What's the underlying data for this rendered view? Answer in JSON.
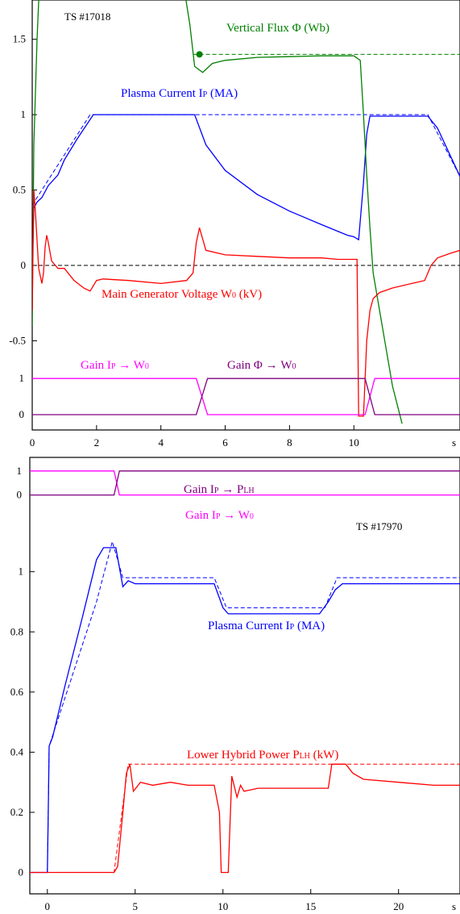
{
  "chart_data": [
    {
      "type": "line",
      "annotation": "TS #17018",
      "x_unit_label": "s",
      "xlim": [
        0,
        13.3
      ],
      "ylim": [
        -0.99,
        1.6
      ],
      "x_ticks": [
        0,
        2,
        4,
        6,
        8,
        10
      ],
      "x_tick_labels": [
        "0",
        "2",
        "4",
        "6",
        "8",
        "10"
      ],
      "y_ticks": [
        1.5,
        1,
        0.5,
        0,
        -0.5
      ],
      "y_tick_labels": [
        "1.5",
        "1",
        "0.5",
        "0",
        "-0.5"
      ],
      "gain_ticks": [
        {
          "label": "1",
          "value": -0.75
        },
        {
          "label": "0",
          "value": -0.99
        }
      ],
      "colors": {
        "ip": "#0000ff",
        "flux": "#008000",
        "w0": "#ff0000",
        "gain_ip": "#ff00ff",
        "gain_flux": "#800080",
        "reference": "#000000"
      },
      "labels": {
        "flux": {
          "main": "Vertical Flux Φ (Wb)"
        },
        "ip": {
          "main": "Plasma Current I",
          "sub": "P",
          "tail": " (MA)"
        },
        "w0": {
          "main": "Main Generator Voltage W",
          "sub": "0",
          "tail": " (kV)"
        },
        "gain_ip": {
          "main": "Gain I",
          "sub": "P",
          "arrow": " → W",
          "sub2": "0"
        },
        "gain_flux": {
          "main": "Gain Φ → W",
          "sub": "0"
        }
      },
      "series": [
        {
          "key": "ip_ref",
          "dashed": true,
          "color": "#0000ff",
          "x": [
            0,
            1.8,
            12.3,
            13.3
          ],
          "y": [
            0.4,
            1.0,
            1.0,
            0.59
          ]
        },
        {
          "key": "ip",
          "color": "#0000ff",
          "x": [
            0,
            0.05,
            0.15,
            0.3,
            0.5,
            0.8,
            1.0,
            1.4,
            1.9,
            2.0,
            3.0,
            4.0,
            5.0,
            5.05,
            5.4,
            6.0,
            7.0,
            8.0,
            9.0,
            9.8,
            10.0,
            10.15,
            10.3,
            10.4,
            10.5,
            12.3,
            12.6,
            13.3
          ],
          "y": [
            0.0,
            0.38,
            0.42,
            0.45,
            0.53,
            0.6,
            0.7,
            0.84,
            1.0,
            1.0,
            1.0,
            1.0,
            1.0,
            1.0,
            0.8,
            0.63,
            0.47,
            0.36,
            0.27,
            0.2,
            0.19,
            0.17,
            0.55,
            0.87,
            0.99,
            0.99,
            0.91,
            0.59
          ]
        },
        {
          "key": "flux_ref",
          "dashed": true,
          "color": "#008000",
          "x": [
            5.0,
            13.3
          ],
          "y": [
            1.4,
            1.4
          ]
        },
        {
          "key": "flux",
          "color": "#008000",
          "x": [
            0,
            0.05,
            0.15,
            0.25,
            4.6,
            4.9,
            5.05,
            5.3,
            5.6,
            6.0,
            7.0,
            8.0,
            9.0,
            10.0,
            10.2,
            10.3,
            10.4,
            10.5,
            10.6,
            10.8,
            11.0,
            11.2,
            11.5
          ],
          "y": [
            -0.4,
            0.8,
            1.5,
            2.0,
            2.0,
            1.6,
            1.32,
            1.28,
            1.34,
            1.36,
            1.38,
            1.385,
            1.39,
            1.39,
            1.36,
            1.0,
            0.6,
            0.25,
            -0.05,
            -0.3,
            -0.55,
            -0.8,
            -1.05
          ]
        },
        {
          "key": "w0_ref",
          "dashed": true,
          "color": "#000000",
          "x": [
            0,
            13.3
          ],
          "y": [
            0,
            0
          ]
        },
        {
          "key": "w0",
          "color": "#ff0000",
          "x": [
            0,
            0.05,
            0.1,
            0.2,
            0.3,
            0.35,
            0.4,
            0.45,
            0.5,
            0.6,
            0.8,
            1.0,
            1.3,
            1.6,
            1.8,
            2.0,
            2.2,
            3.0,
            4.0,
            4.8,
            5.0,
            5.1,
            5.2,
            5.4,
            6.0,
            7.0,
            8.0,
            9.0,
            9.5,
            9.9,
            10.0,
            10.1,
            10.15,
            10.3,
            10.4,
            10.5,
            10.6,
            10.8,
            11.2,
            11.8,
            12.2,
            12.4,
            12.6,
            13.0,
            13.3
          ],
          "y": [
            -0.3,
            0.5,
            0.35,
            -0.02,
            -0.12,
            -0.05,
            0.12,
            0.2,
            0.15,
            0.03,
            -0.02,
            -0.02,
            -0.1,
            -0.15,
            -0.17,
            -0.1,
            -0.09,
            -0.1,
            -0.12,
            -0.1,
            -0.05,
            0.15,
            0.25,
            0.1,
            0.07,
            0.06,
            0.05,
            0.05,
            0.04,
            0.04,
            0.04,
            0.04,
            -1.0,
            -1.0,
            -0.5,
            -0.3,
            -0.22,
            -0.18,
            -0.15,
            -0.12,
            -0.1,
            0.0,
            0.05,
            0.08,
            0.1
          ]
        },
        {
          "key": "gain_ip",
          "color": "#ff00ff",
          "x": [
            0,
            5.1,
            5.45,
            10.35,
            10.65,
            13.3
          ],
          "y": [
            -0.75,
            -0.75,
            -0.99,
            -0.99,
            -0.75,
            -0.75
          ]
        },
        {
          "key": "gain_flux",
          "color": "#800080",
          "x": [
            0,
            5.1,
            5.45,
            10.35,
            10.65,
            13.3
          ],
          "y": [
            -0.99,
            -0.99,
            -0.75,
            -0.75,
            -0.99,
            -0.99
          ]
        }
      ]
    },
    {
      "type": "line",
      "annotation": "TS #17970",
      "x_unit_label": "s",
      "xlim": [
        -1.0,
        23.5
      ],
      "ylim": [
        -0.02,
        1.38
      ],
      "x_ticks": [
        0,
        5,
        10,
        15,
        20
      ],
      "x_tick_labels": [
        "0",
        "5",
        "10",
        "15",
        "20"
      ],
      "y_ticks": [
        1,
        0.8,
        0.6,
        0.4,
        0.2,
        0
      ],
      "y_tick_labels": [
        "1",
        "0.8",
        "0.6",
        "0.4",
        "0.2",
        "0"
      ],
      "gain_ticks": [
        {
          "label": "1",
          "value": 1.335
        },
        {
          "label": "0",
          "value": 1.255
        }
      ],
      "colors": {
        "ip": "#0000ff",
        "plh": "#ff0000",
        "gain_plh": "#800080",
        "gain_w0": "#ff00ff"
      },
      "labels": {
        "gain_plh": {
          "main": "Gain I",
          "sub": "P",
          "arrow": " → P",
          "sub2": "LH"
        },
        "gain_w0": {
          "main": "Gain I",
          "sub": "P",
          "arrow": " → W",
          "sub2": "0"
        },
        "ip": {
          "main": "Plasma Current I",
          "sub": "P",
          "tail": " (MA)"
        },
        "plh": {
          "main": "Lower Hybrid Power P",
          "sub": "LH",
          "tail": " (kW)"
        }
      },
      "series": [
        {
          "key": "gain_w0",
          "color": "#ff00ff",
          "x": [
            -1.0,
            3.8,
            4.1,
            23.5
          ],
          "y": [
            1.335,
            1.335,
            1.255,
            1.255
          ]
        },
        {
          "key": "gain_plh",
          "color": "#800080",
          "x": [
            -1.0,
            3.8,
            4.1,
            23.5
          ],
          "y": [
            1.255,
            1.255,
            1.335,
            1.335
          ]
        },
        {
          "key": "ip_ref",
          "dashed": true,
          "color": "#0000ff",
          "x": [
            0,
            0.1,
            2.8,
            3.7,
            4.3,
            9.5,
            10.2,
            15.8,
            16.5,
            23.5
          ],
          "y": [
            0.0,
            0.42,
            0.9,
            1.1,
            0.98,
            0.98,
            0.88,
            0.88,
            0.98,
            0.98
          ]
        },
        {
          "key": "ip",
          "color": "#0000ff",
          "x": [
            -1.0,
            0,
            0.05,
            0.1,
            0.3,
            1.0,
            2.0,
            2.8,
            3.2,
            3.6,
            3.9,
            4.3,
            4.6,
            5.0,
            6.0,
            7.0,
            8.0,
            9.5,
            10.0,
            10.3,
            11.0,
            12.0,
            13.0,
            14.0,
            15.5,
            16.0,
            16.4,
            16.8,
            17.5,
            19.0,
            21.0,
            23.5
          ],
          "y": [
            0.0,
            0.0,
            0.2,
            0.42,
            0.45,
            0.62,
            0.85,
            1.04,
            1.08,
            1.08,
            1.08,
            0.95,
            0.97,
            0.96,
            0.96,
            0.96,
            0.96,
            0.96,
            0.88,
            0.86,
            0.86,
            0.86,
            0.86,
            0.86,
            0.86,
            0.9,
            0.94,
            0.96,
            0.96,
            0.96,
            0.96,
            0.96
          ]
        },
        {
          "key": "plh_ref",
          "dashed": true,
          "color": "#ff0000",
          "x": [
            -1.0,
            3.8,
            4.6,
            23.5
          ],
          "y": [
            0.0,
            0.0,
            0.36,
            0.36
          ]
        },
        {
          "key": "plh",
          "color": "#ff0000",
          "x": [
            -1.0,
            3.8,
            4.0,
            4.3,
            4.5,
            4.7,
            4.9,
            5.3,
            6.0,
            7.0,
            8.0,
            9.5,
            9.8,
            9.9,
            10.3,
            10.5,
            10.8,
            11.0,
            11.2,
            12.0,
            13.0,
            14.0,
            15.0,
            16.0,
            16.2,
            16.6,
            17.0,
            17.4,
            18.0,
            20.0,
            22.0,
            23.5
          ],
          "y": [
            0.0,
            0.0,
            0.02,
            0.2,
            0.33,
            0.36,
            0.27,
            0.3,
            0.29,
            0.3,
            0.29,
            0.29,
            0.2,
            0.0,
            0.0,
            0.32,
            0.25,
            0.29,
            0.27,
            0.28,
            0.28,
            0.28,
            0.28,
            0.28,
            0.36,
            0.36,
            0.36,
            0.33,
            0.31,
            0.3,
            0.29,
            0.29
          ]
        }
      ]
    }
  ]
}
